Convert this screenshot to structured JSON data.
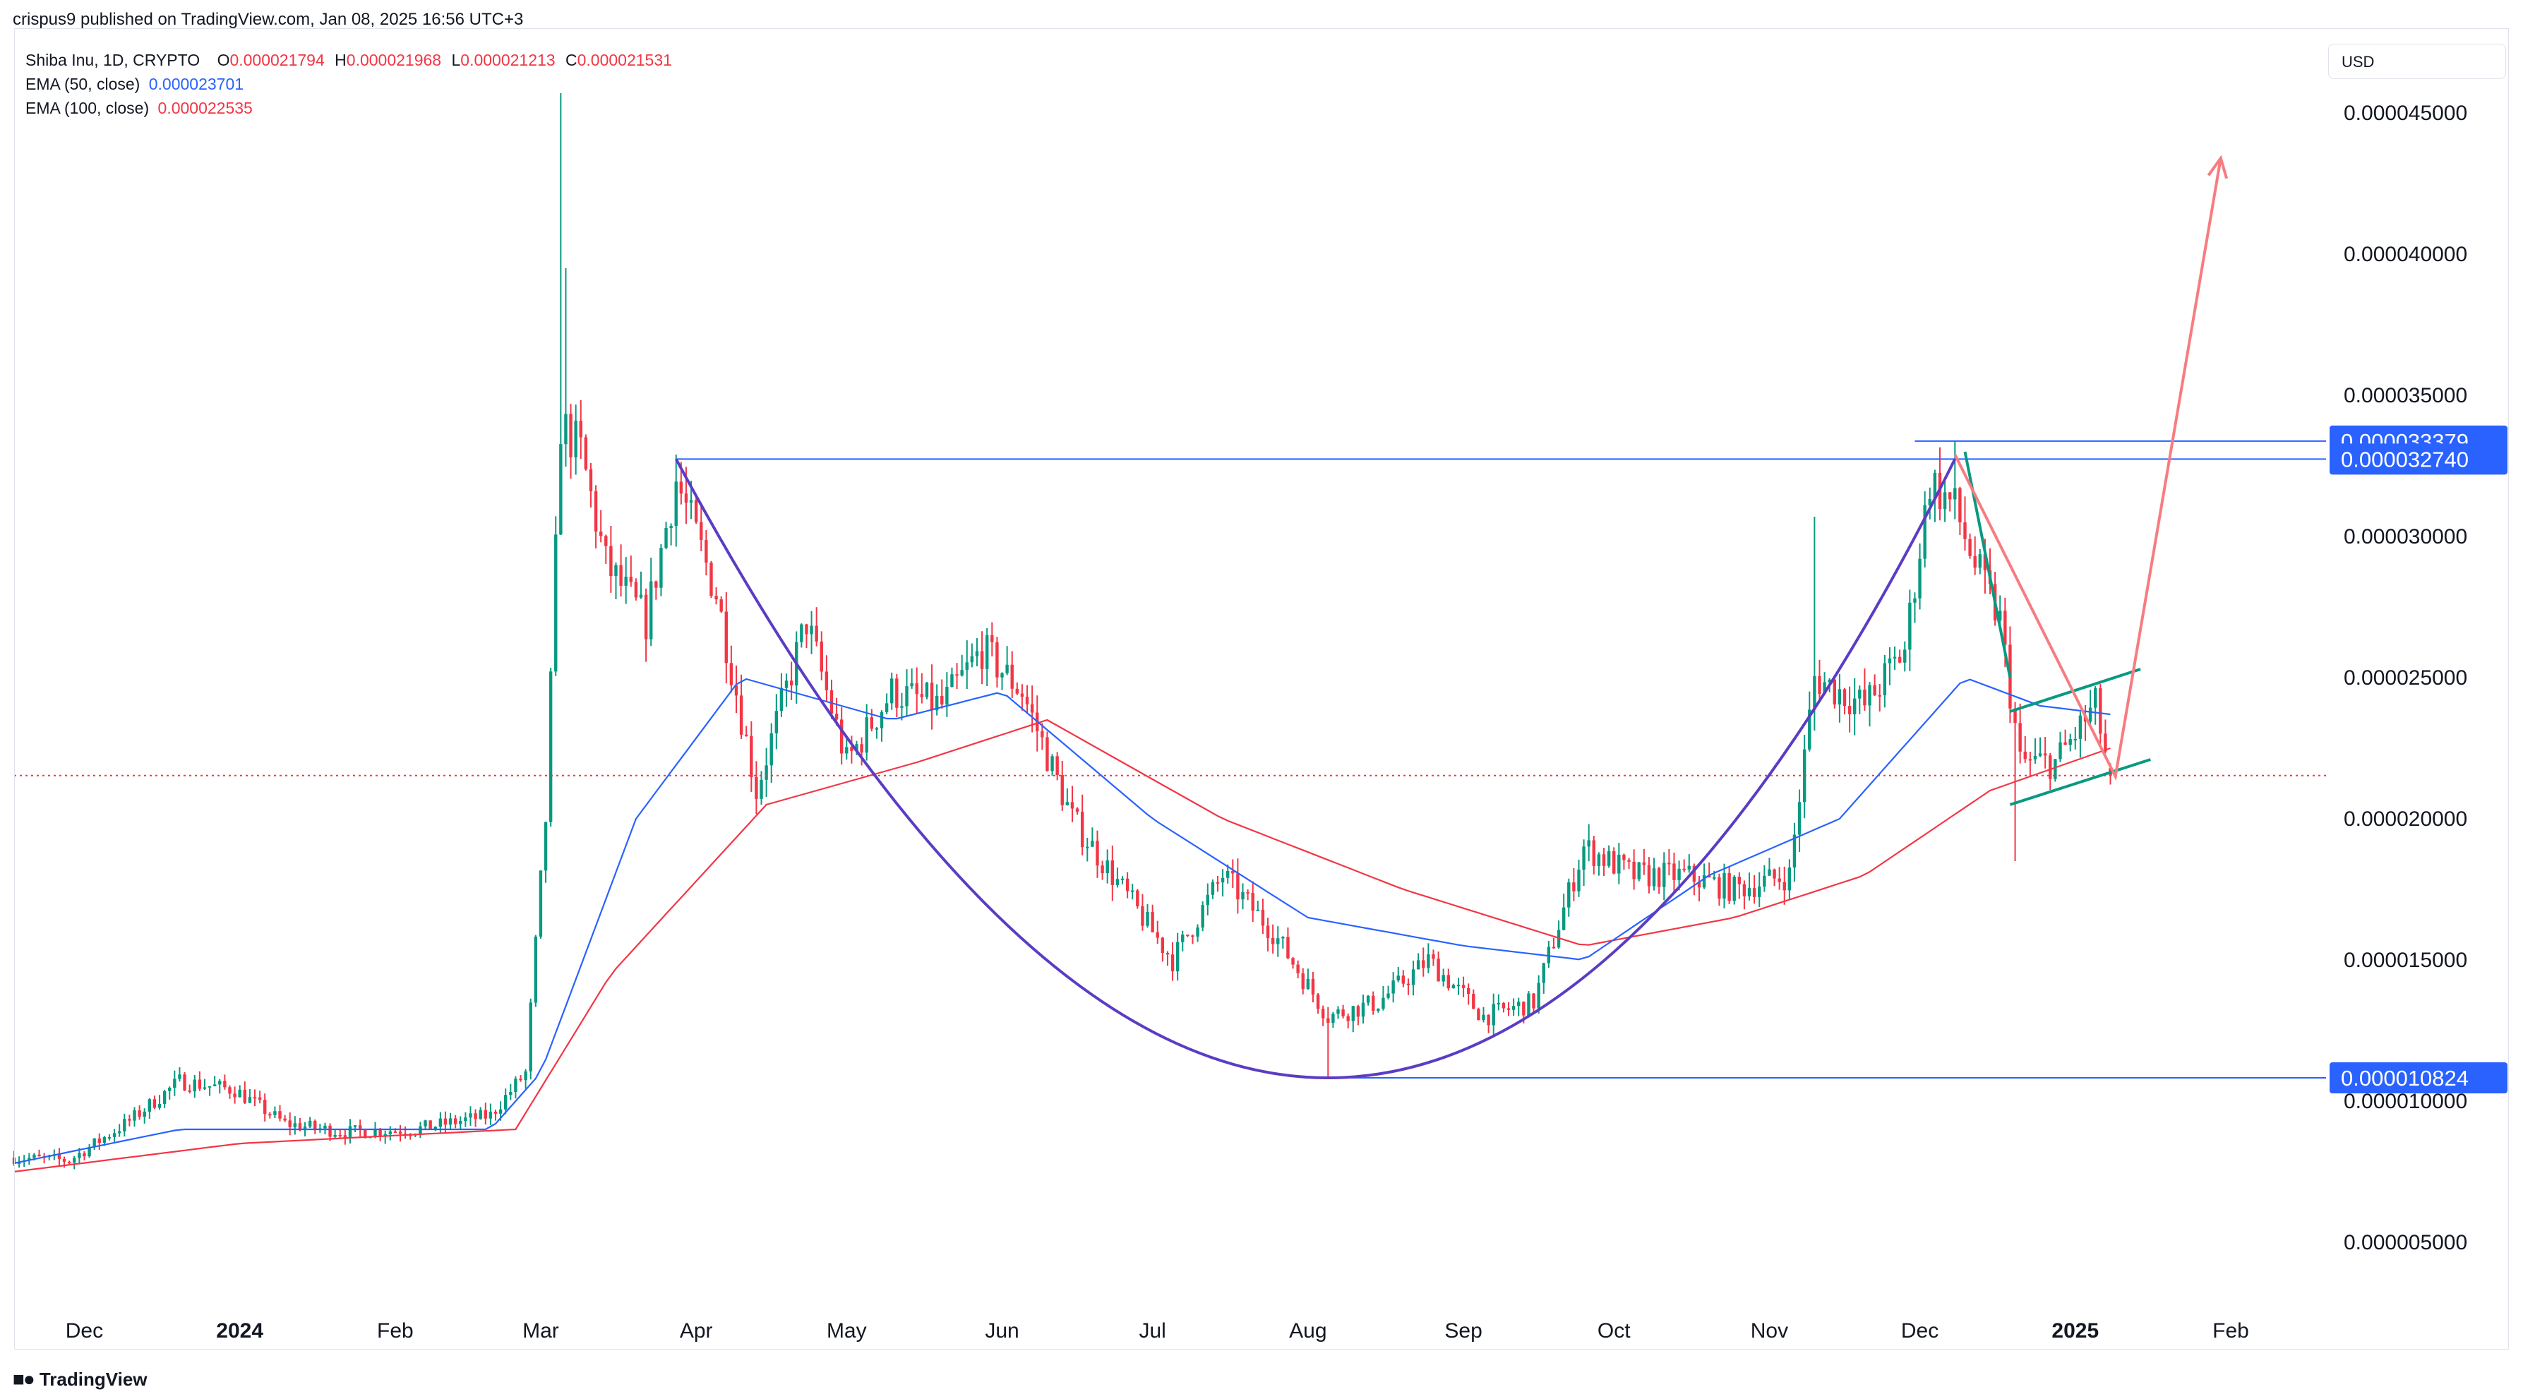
{
  "publisher": "crispus9 published on TradingView.com, Jan 08, 2025 16:56 UTC+3",
  "legend": {
    "symbol": "Shiba Inu, 1D, CRYPTO",
    "open_key": "O",
    "open": "0.000021794",
    "high_key": "H",
    "high": "0.000021968",
    "low_key": "L",
    "low": "0.000021213",
    "close_key": "C",
    "close": "0.000021531",
    "ema50_label": "EMA (50, close)",
    "ema50_value": "0.000023701",
    "ema100_label": "EMA (100, close)",
    "ema100_value": "0.000022535"
  },
  "currency": "USD",
  "footer": {
    "brand": "TradingView"
  },
  "colors": {
    "up": "#089981",
    "down": "#f23645",
    "ema50": "#2962ff",
    "ema100": "#f23645",
    "cup_arc": "#5b3cc4",
    "level_line": "#2962ff",
    "price_tag": "#2962ff",
    "channel": "#089981",
    "projection": "#f77c80",
    "grid": "#f0f3fa"
  },
  "chart_data": {
    "type": "candlestick",
    "instrument": "Shiba Inu",
    "timeframe": "1D",
    "y_scale": "linear",
    "ylim": [
      2.5e-06,
      4.8e-05
    ],
    "grid": false,
    "y_ticks": [
      "0.000045000",
      "0.000040000",
      "0.000035000",
      "0.000030000",
      "0.000025000",
      "0.000020000",
      "0.000015000",
      "0.000010000",
      "0.000005000"
    ],
    "y_tick_values": [
      4.5e-05,
      4e-05,
      3.5e-05,
      3e-05,
      2.5e-05,
      2e-05,
      1.5e-05,
      1e-05,
      5e-06
    ],
    "x_ticks": [
      {
        "label": "Dec",
        "date": "2023-12-01",
        "bold": false
      },
      {
        "label": "2024",
        "date": "2024-01-01",
        "bold": true
      },
      {
        "label": "Feb",
        "date": "2024-02-01",
        "bold": false
      },
      {
        "label": "Mar",
        "date": "2024-03-01",
        "bold": false
      },
      {
        "label": "Apr",
        "date": "2024-04-01",
        "bold": false
      },
      {
        "label": "May",
        "date": "2024-05-01",
        "bold": false
      },
      {
        "label": "Jun",
        "date": "2024-06-01",
        "bold": false
      },
      {
        "label": "Jul",
        "date": "2024-07-01",
        "bold": false
      },
      {
        "label": "Aug",
        "date": "2024-08-01",
        "bold": false
      },
      {
        "label": "Sep",
        "date": "2024-09-01",
        "bold": false
      },
      {
        "label": "Oct",
        "date": "2024-10-01",
        "bold": false
      },
      {
        "label": "Nov",
        "date": "2024-11-01",
        "bold": false
      },
      {
        "label": "Dec",
        "date": "2024-12-01",
        "bold": false
      },
      {
        "label": "2025",
        "date": "2025-01-01",
        "bold": true
      },
      {
        "label": "Feb",
        "date": "2025-02-01",
        "bold": false
      }
    ],
    "xlim": [
      "2023-11-17",
      "2025-02-20"
    ],
    "last_candle": {
      "date": "2025-01-08",
      "open": 2.1794e-05,
      "high": 2.1968e-05,
      "low": 2.1213e-05,
      "close": 2.1531e-05
    },
    "price_anchors": [
      [
        "2023-11-17",
        8e-06
      ],
      [
        "2023-11-28",
        7.9e-06
      ],
      [
        "2023-12-10",
        9.3e-06
      ],
      [
        "2023-12-20",
        1.07e-05
      ],
      [
        "2023-12-31",
        1.04e-05
      ],
      [
        "2024-01-10",
        9.2e-06
      ],
      [
        "2024-01-22",
        8.9e-06
      ],
      [
        "2024-02-05",
        9e-06
      ],
      [
        "2024-02-20",
        9.5e-06
      ],
      [
        "2024-02-27",
        1.1e-05
      ],
      [
        "2024-03-02",
        2e-05
      ],
      [
        "2024-03-05",
        3.4e-05
      ],
      [
        "2024-03-09",
        3.3e-05
      ],
      [
        "2024-03-14",
        2.9e-05
      ],
      [
        "2024-03-22",
        2.7e-05
      ],
      [
        "2024-03-28",
        3.2e-05
      ],
      [
        "2024-04-05",
        2.8e-05
      ],
      [
        "2024-04-13",
        2.1e-05
      ],
      [
        "2024-04-23",
        2.7e-05
      ],
      [
        "2024-05-01",
        2.2e-05
      ],
      [
        "2024-05-10",
        2.45e-05
      ],
      [
        "2024-05-20",
        2.4e-05
      ],
      [
        "2024-05-28",
        2.6e-05
      ],
      [
        "2024-06-05",
        2.45e-05
      ],
      [
        "2024-06-15",
        2e-05
      ],
      [
        "2024-06-25",
        1.75e-05
      ],
      [
        "2024-07-05",
        1.5e-05
      ],
      [
        "2024-07-15",
        1.8e-05
      ],
      [
        "2024-07-25",
        1.6e-05
      ],
      [
        "2024-08-05",
        1.3e-05
      ],
      [
        "2024-08-15",
        1.35e-05
      ],
      [
        "2024-08-25",
        1.5e-05
      ],
      [
        "2024-09-05",
        1.3e-05
      ],
      [
        "2024-09-15",
        1.35e-05
      ],
      [
        "2024-09-25",
        1.9e-05
      ],
      [
        "2024-10-05",
        1.8e-05
      ],
      [
        "2024-10-15",
        1.8e-05
      ],
      [
        "2024-10-25",
        1.75e-05
      ],
      [
        "2024-11-05",
        1.8e-05
      ],
      [
        "2024-11-10",
        2.5e-05
      ],
      [
        "2024-11-20",
        2.4e-05
      ],
      [
        "2024-11-28",
        2.6e-05
      ],
      [
        "2024-12-03",
        3.2e-05
      ],
      [
        "2024-12-08",
        3.1e-05
      ],
      [
        "2024-12-12",
        2.9e-05
      ],
      [
        "2024-12-17",
        2.7e-05
      ],
      [
        "2024-12-21",
        2.2e-05
      ],
      [
        "2024-12-28",
        2.2e-05
      ],
      [
        "2025-01-05",
        2.4e-05
      ],
      [
        "2025-01-08",
        2.15e-05
      ]
    ],
    "spikes": [
      [
        "2024-03-05",
        4.57e-05
      ],
      [
        "2024-03-06",
        3.95e-05
      ],
      [
        "2024-03-28",
        3.29e-05
      ],
      [
        "2024-08-05",
        1.08e-05
      ],
      [
        "2024-12-08",
        3.34e-05
      ],
      [
        "2024-12-20",
        1.85e-05
      ],
      [
        "2024-11-10",
        3.07e-05
      ]
    ],
    "ema50_points": [
      [
        "2023-11-17",
        7.8e-06
      ],
      [
        "2023-12-20",
        9e-06
      ],
      [
        "2024-02-20",
        9e-06
      ],
      [
        "2024-03-01",
        1.1e-05
      ],
      [
        "2024-03-20",
        2e-05
      ],
      [
        "2024-04-10",
        2.5e-05
      ],
      [
        "2024-05-10",
        2.35e-05
      ],
      [
        "2024-06-01",
        2.45e-05
      ],
      [
        "2024-07-01",
        2e-05
      ],
      [
        "2024-08-01",
        1.65e-05
      ],
      [
        "2024-09-01",
        1.55e-05
      ],
      [
        "2024-09-25",
        1.5e-05
      ],
      [
        "2024-10-20",
        1.8e-05
      ],
      [
        "2024-11-15",
        2e-05
      ],
      [
        "2024-12-10",
        2.5e-05
      ],
      [
        "2024-12-25",
        2.4e-05
      ],
      [
        "2025-01-08",
        2.37e-05
      ]
    ],
    "ema100_points": [
      [
        "2023-11-17",
        7.5e-06
      ],
      [
        "2024-01-01",
        8.5e-06
      ],
      [
        "2024-02-25",
        9e-06
      ],
      [
        "2024-03-15",
        1.45e-05
      ],
      [
        "2024-04-15",
        2.05e-05
      ],
      [
        "2024-05-15",
        2.2e-05
      ],
      [
        "2024-06-10",
        2.35e-05
      ],
      [
        "2024-07-15",
        2e-05
      ],
      [
        "2024-08-20",
        1.75e-05
      ],
      [
        "2024-09-25",
        1.55e-05
      ],
      [
        "2024-10-25",
        1.65e-05
      ],
      [
        "2024-11-20",
        1.8e-05
      ],
      [
        "2024-12-15",
        2.1e-05
      ],
      [
        "2025-01-08",
        2.25e-05
      ]
    ],
    "current_price_line": 2.1531e-05,
    "level_tags": [
      {
        "label": "0.000033379",
        "value": 3.3379e-05
      },
      {
        "label": "0.000032740",
        "value": 3.274e-05
      },
      {
        "label": "0.000010824",
        "value": 1.0824e-05
      }
    ],
    "annotations": {
      "horizontal_lines": [
        {
          "from": "2024-03-28",
          "to": "2025-02-20",
          "value": 3.274e-05
        },
        {
          "from": "2024-11-30",
          "to": "2025-02-20",
          "value": 3.3379e-05
        },
        {
          "from": "2024-08-05",
          "to": "2025-02-20",
          "value": 1.0824e-05
        }
      ],
      "cup_arc": {
        "start": [
          "2024-03-28",
          3.274e-05
        ],
        "bottom": [
          "2024-08-05",
          1.0824e-05
        ],
        "end": [
          "2024-12-08",
          3.274e-05
        ]
      },
      "channel_upper": [
        [
          "2024-12-19",
          2.38e-05
        ],
        [
          "2025-01-14",
          2.53e-05
        ]
      ],
      "channel_lower": [
        [
          "2024-12-19",
          2.05e-05
        ],
        [
          "2025-01-16",
          2.21e-05
        ]
      ],
      "drop_line": [
        [
          "2024-12-10",
          3.3e-05
        ],
        [
          "2024-12-19",
          2.5e-05
        ]
      ],
      "projection_arrow": [
        [
          "2024-12-08",
          3.29e-05
        ],
        [
          "2025-01-09",
          2.15e-05
        ],
        [
          "2025-01-30",
          4.34e-05
        ]
      ]
    }
  }
}
